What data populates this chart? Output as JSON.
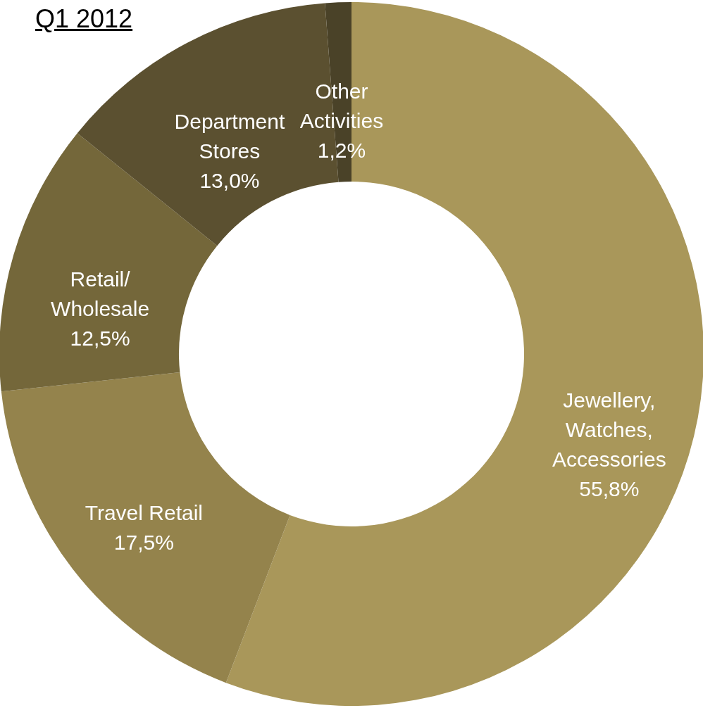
{
  "chart_data": {
    "type": "donut",
    "title": "Q1 2012",
    "categories": [
      "Jewellery,\nWatches,\nAccessories",
      "Travel Retail",
      "Retail/\nWholesale",
      "Department\nStores",
      "Other\nActivities"
    ],
    "values": [
      55.8,
      17.5,
      12.5,
      13.0,
      1.2
    ],
    "value_labels": [
      "55,8%",
      "17,5%",
      "12,5%",
      "13,0%",
      "1,2%"
    ],
    "colors": [
      "#a9975a",
      "#94834c",
      "#74673a",
      "#5b5030",
      "#4a4228"
    ]
  }
}
